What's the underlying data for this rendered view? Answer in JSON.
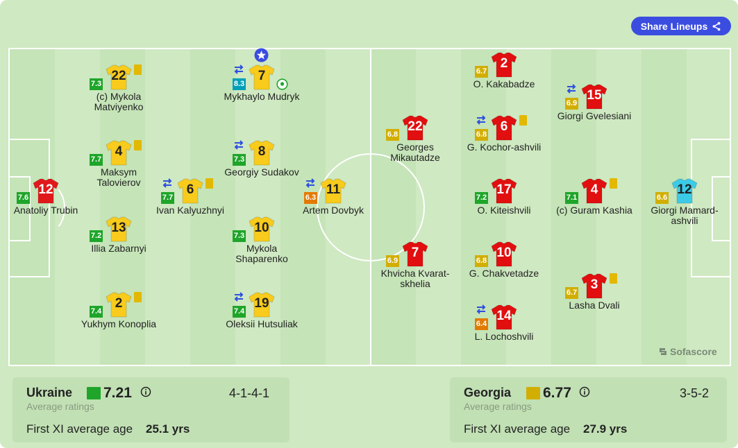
{
  "share_label": "Share Lineups",
  "brand": "Sofascore",
  "colors": {
    "green": "#1fa52a",
    "yellow": "#d2ae02",
    "orange": "#e37a00",
    "teal": "#009fb9",
    "ua_shirt": "#f8cb1c",
    "ge_shirt": "#e10f0f",
    "gk_ua": "#e1181b",
    "gk_ge": "#3ccbe6"
  },
  "players": [
    {
      "id": "trubin",
      "num": "12",
      "name": "Anatoliy Trubin",
      "rating": "7.6",
      "rating_color": "#1fa52a",
      "shirt": "#e1181b",
      "num_color": "#ffffff"
    },
    {
      "id": "matviyenko",
      "num": "22",
      "name": "(c) Mykola Matviyenko",
      "rating": "7.3",
      "rating_color": "#1fa52a",
      "shirt": "#f8cb1c",
      "num_color": "#222222",
      "card": true
    },
    {
      "id": "talovierov",
      "num": "4",
      "name": "Maksym Talovierov",
      "rating": "7.7",
      "rating_color": "#1fa52a",
      "shirt": "#f8cb1c",
      "num_color": "#222222",
      "card": true
    },
    {
      "id": "zabarnyi",
      "num": "13",
      "name": "Illia Zabarnyi",
      "rating": "7.2",
      "rating_color": "#1fa52a",
      "shirt": "#f8cb1c",
      "num_color": "#222222"
    },
    {
      "id": "konoplia",
      "num": "2",
      "name": "Yukhym Konoplia",
      "rating": "7.4",
      "rating_color": "#1fa52a",
      "shirt": "#f8cb1c",
      "num_color": "#222222",
      "card": true
    },
    {
      "id": "kalyuzhnyi",
      "num": "6",
      "name": "Ivan Kalyuzhnyi",
      "rating": "7.7",
      "rating_color": "#1fa52a",
      "shirt": "#f8cb1c",
      "num_color": "#222222",
      "card": true,
      "sub": true
    },
    {
      "id": "mudryk",
      "num": "7",
      "name": "Mykhaylo Mudryk",
      "rating": "8.3",
      "rating_color": "#009fb9",
      "shirt": "#f8cb1c",
      "num_color": "#222222",
      "sub": true,
      "goal": true,
      "star": true
    },
    {
      "id": "sudakov",
      "num": "8",
      "name": "Georgiy Sudakov",
      "rating": "7.3",
      "rating_color": "#1fa52a",
      "shirt": "#f8cb1c",
      "num_color": "#222222",
      "sub": true
    },
    {
      "id": "shaparenko",
      "num": "10",
      "name": "Mykola Shaparenko",
      "rating": "7.3",
      "rating_color": "#1fa52a",
      "shirt": "#f8cb1c",
      "num_color": "#222222"
    },
    {
      "id": "hutsuliak",
      "num": "19",
      "name": "Oleksii Hutsuliak",
      "rating": "7.4",
      "rating_color": "#1fa52a",
      "shirt": "#f8cb1c",
      "num_color": "#222222",
      "sub": true
    },
    {
      "id": "dovbyk",
      "num": "11",
      "name": "Artem Dovbyk",
      "rating": "6.3",
      "rating_color": "#e37a00",
      "shirt": "#f8cb1c",
      "num_color": "#222222",
      "sub": true
    },
    {
      "id": "mikautadze",
      "num": "22",
      "name": "Georges Mikautadze",
      "rating": "6.8",
      "rating_color": "#d2ae02",
      "shirt": "#e10f0f",
      "num_color": "#ffffff"
    },
    {
      "id": "kvaratskhelia",
      "num": "7",
      "name": "Khvicha Kvarat-skhelia",
      "rating": "6.9",
      "rating_color": "#d2ae02",
      "shirt": "#e10f0f",
      "num_color": "#ffffff"
    },
    {
      "id": "kakabadze",
      "num": "2",
      "name": "O. Kakabadze",
      "rating": "6.7",
      "rating_color": "#d2ae02",
      "shirt": "#e10f0f",
      "num_color": "#ffffff"
    },
    {
      "id": "kochorashvili",
      "num": "6",
      "name": "G. Kochor-ashvili",
      "rating": "6.8",
      "rating_color": "#d2ae02",
      "shirt": "#e10f0f",
      "num_color": "#ffffff",
      "card": true,
      "sub": true
    },
    {
      "id": "kiteishvili",
      "num": "17",
      "name": "O. Kiteishvili",
      "rating": "7.2",
      "rating_color": "#1fa52a",
      "shirt": "#e10f0f",
      "num_color": "#ffffff"
    },
    {
      "id": "chakvetadze",
      "num": "10",
      "name": "G. Chakvetadze",
      "rating": "6.8",
      "rating_color": "#d2ae02",
      "shirt": "#e10f0f",
      "num_color": "#ffffff"
    },
    {
      "id": "lochoshvili",
      "num": "14",
      "name": "L. Lochoshvili",
      "rating": "6.4",
      "rating_color": "#e37a00",
      "shirt": "#e10f0f",
      "num_color": "#ffffff",
      "sub": true
    },
    {
      "id": "gvelesiani",
      "num": "15",
      "name": "Giorgi Gvelesiani",
      "rating": "6.9",
      "rating_color": "#d2ae02",
      "shirt": "#e10f0f",
      "num_color": "#ffffff",
      "sub": true
    },
    {
      "id": "kashia",
      "num": "4",
      "name": "(c) Guram Kashia",
      "rating": "7.1",
      "rating_color": "#1fa52a",
      "shirt": "#e10f0f",
      "num_color": "#ffffff",
      "card": true
    },
    {
      "id": "dvali",
      "num": "3",
      "name": "Lasha Dvali",
      "rating": "6.7",
      "rating_color": "#d2ae02",
      "shirt": "#e10f0f",
      "num_color": "#ffffff",
      "card": true
    },
    {
      "id": "mamardashvili",
      "num": "12",
      "name": "Giorgi Mamard-ashvili",
      "rating": "6.6",
      "rating_color": "#d2ae02",
      "shirt": "#3ccbe6",
      "num_color": "#222222"
    }
  ],
  "home": {
    "name": "Ukraine",
    "rating": "7.21",
    "rating_color": "#1fa52a",
    "formation": "4-1-4-1",
    "avg_label": "Average ratings",
    "age_label": "First XI average age",
    "age_value": "25.1 yrs"
  },
  "away": {
    "name": "Georgia",
    "rating": "6.77",
    "rating_color": "#d2ae02",
    "formation": "3-5-2",
    "avg_label": "Average ratings",
    "age_label": "First XI average age",
    "age_value": "27.9 yrs"
  }
}
